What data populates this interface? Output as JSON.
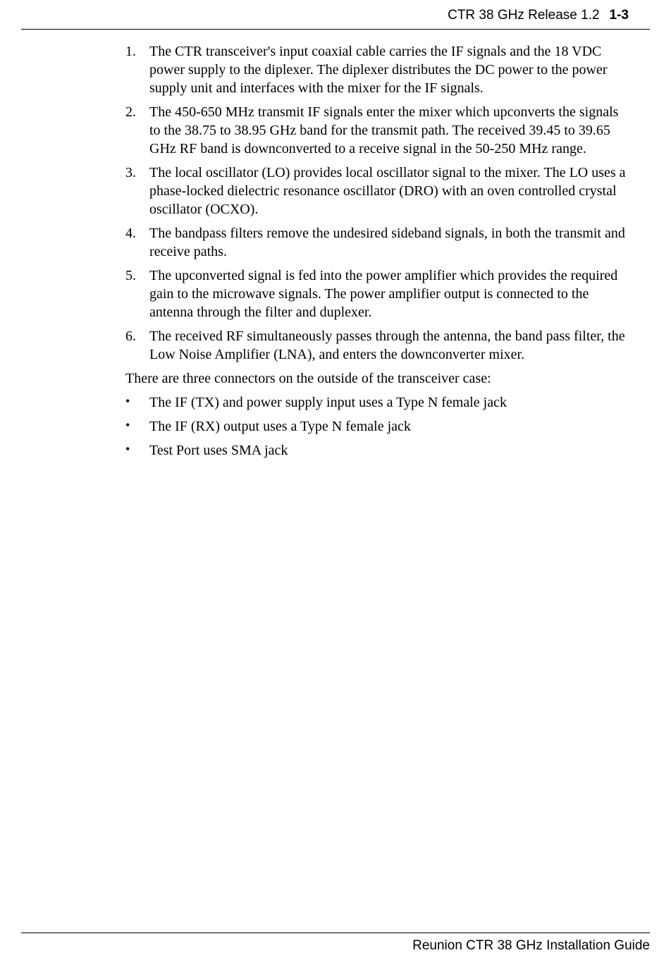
{
  "header": {
    "title": "CTR 38 GHz Release 1.2",
    "page": "1-3"
  },
  "numbered_items": [
    {
      "n": "1.",
      "text": "The CTR transceiver's input coaxial cable carries the IF signals and the 18 VDC power supply to the diplexer. The diplexer distributes the DC power to the power supply unit and interfaces with the mixer for the IF signals."
    },
    {
      "n": "2.",
      "text": "The 450-650 MHz transmit IF signals enter the mixer which upconverts the signals to the 38.75 to 38.95 GHz band for the transmit path. The received 39.45 to 39.65 GHz RF band is downconverted to a receive signal in the 50-250 MHz range."
    },
    {
      "n": "3.",
      "text": "The local oscillator (LO) provides local oscillator signal to the mixer. The LO uses a phase-locked dielectric resonance oscillator (DRO) with an oven controlled crystal oscillator (OCXO)."
    },
    {
      "n": "4.",
      "text": "The bandpass filters remove the undesired sideband signals, in both the transmit and receive paths."
    },
    {
      "n": "5.",
      "text": "The upconverted signal is fed into the power amplifier which provides the required gain to the microwave signals. The power amplifier output is connected to the antenna through the filter and duplexer."
    },
    {
      "n": "6.",
      "text": "The received RF simultaneously passes through the antenna, the band pass filter, the Low Noise Amplifier (LNA), and enters the downconverter mixer."
    }
  ],
  "intro_para": "There are three connectors on the outside of the transceiver case:",
  "bullet_items": [
    "The IF (TX) and power supply input uses a Type N female jack",
    "The IF (RX) output uses a Type N female jack",
    "Test Port uses SMA jack"
  ],
  "footer": "Reunion   CTR 38 GHz  Installation Guide"
}
